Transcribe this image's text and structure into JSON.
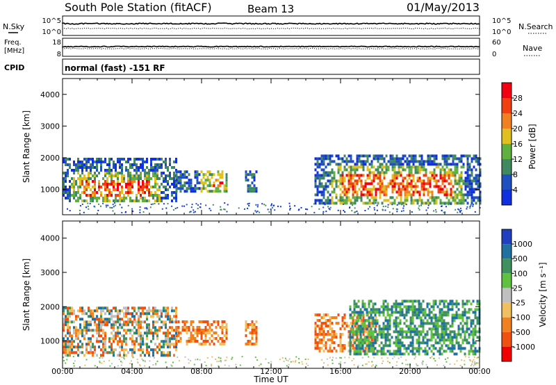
{
  "header": {
    "station": "South Pole Station (fitACF)",
    "beam": "Beam 13",
    "date": "01/May/2013"
  },
  "top_panels": {
    "nsky_label": "N.Sky",
    "nsearch_label": "N.Search",
    "noise_ticks_left": [
      "10^5",
      "10^0"
    ],
    "noise_ticks_right": [
      "10^5",
      "10^0"
    ],
    "freq_label_line1": "Freq.",
    "freq_label_line2": "[MHz]",
    "freq_ticks_left": [
      "18",
      "8"
    ],
    "nave_label": "Nave",
    "nave_ticks_right": [
      "60",
      "0"
    ],
    "cpid_label": "CPID",
    "cpid_text": "normal (fast) -151 RF"
  },
  "chart_data": [
    {
      "type": "heatmap",
      "name": "power",
      "ylabel": "Slant Range [km]",
      "xlabel": "Time UT",
      "x_unit": "hours UT",
      "xlim": [
        0,
        24
      ],
      "ylim": [
        200,
        4500
      ],
      "x_ticks": [
        "00:00",
        "04:00",
        "08:00",
        "12:00",
        "16:00",
        "20:00",
        "00:00"
      ],
      "y_ticks": [
        1000,
        2000,
        3000,
        4000
      ],
      "colorbar": {
        "label": "Power [dB]",
        "ticks": [
          "4",
          "8",
          "12",
          "16",
          "20",
          "24",
          "28"
        ],
        "colors": [
          "#1030e0",
          "#2050c0",
          "#408860",
          "#60b040",
          "#e0c020",
          "#f08020",
          "#f04010",
          "#f00010"
        ]
      },
      "echo_regions": [
        {
          "t0": 0.0,
          "t1": 6.5,
          "r0": 600,
          "r1": 2000,
          "core": [
            1.0,
            5.0,
            800,
            1300
          ]
        },
        {
          "t0": 6.5,
          "t1": 9.5,
          "r0": 900,
          "r1": 1600,
          "core": [
            8.5,
            9.2,
            1100,
            1400
          ]
        },
        {
          "t0": 10.5,
          "t1": 11.2,
          "r0": 900,
          "r1": 1600
        },
        {
          "t0": 14.5,
          "t1": 24.0,
          "r0": 600,
          "r1": 2100,
          "core": [
            16.0,
            22.5,
            800,
            1500
          ]
        }
      ]
    },
    {
      "type": "heatmap",
      "name": "velocity",
      "ylabel": "Slant Range [km]",
      "xlabel": "Time UT",
      "x_unit": "hours UT",
      "xlim": [
        0,
        24
      ],
      "ylim": [
        200,
        4500
      ],
      "x_ticks": [
        "00:00",
        "04:00",
        "08:00",
        "12:00",
        "16:00",
        "20:00",
        "00:00"
      ],
      "y_ticks": [
        1000,
        2000,
        3000,
        4000
      ],
      "colorbar": {
        "label": "Velocity [m s⁻¹]",
        "ticks": [
          "1000",
          "500",
          "100",
          "25",
          "-25",
          "-100",
          "-500",
          "-1000"
        ],
        "colors": [
          "#2040c0",
          "#2070a0",
          "#409060",
          "#60c040",
          "#c0c0c0",
          "#f0c060",
          "#f08020",
          "#f05010",
          "#f00000"
        ]
      },
      "echo_regions": [
        {
          "t0": 0.0,
          "t1": 6.5,
          "r0": 600,
          "r1": 2000,
          "sign": "mixed"
        },
        {
          "t0": 6.5,
          "t1": 9.5,
          "r0": 900,
          "r1": 1600,
          "sign": "negative"
        },
        {
          "t0": 10.5,
          "t1": 11.2,
          "r0": 900,
          "r1": 1600,
          "sign": "negative"
        },
        {
          "t0": 14.5,
          "t1": 18.0,
          "r0": 700,
          "r1": 1800,
          "sign": "negative"
        },
        {
          "t0": 16.5,
          "t1": 24.0,
          "r0": 600,
          "r1": 2200,
          "sign": "positive"
        }
      ]
    }
  ]
}
